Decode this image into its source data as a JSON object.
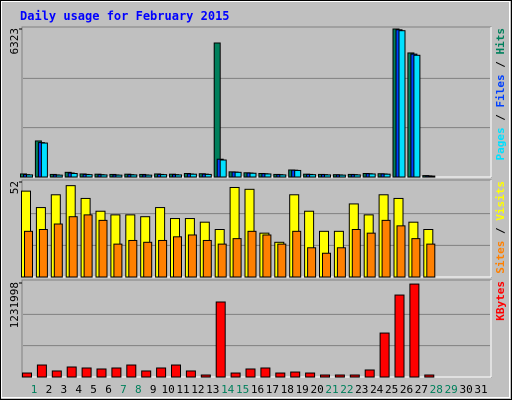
{
  "chart_data": [
    {
      "type": "bar",
      "title": "Daily usage for February 2015",
      "ylim": [
        0,
        6323
      ],
      "yticks": [
        6323
      ],
      "series": [
        {
          "name": "Hits",
          "color": "#00805c",
          "values": [
            130,
            1540,
            110,
            200,
            130,
            120,
            110,
            120,
            110,
            130,
            120,
            150,
            140,
            5725,
            220,
            180,
            150,
            110,
            300,
            120,
            110,
            100,
            110,
            150,
            140,
            6323,
            5300,
            60,
            null,
            null,
            null
          ]
        },
        {
          "name": "Files",
          "color": "#0040ff",
          "values": [
            100,
            1470,
            90,
            170,
            110,
            100,
            90,
            100,
            90,
            110,
            100,
            130,
            120,
            760,
            210,
            170,
            140,
            100,
            290,
            110,
            100,
            90,
            100,
            140,
            130,
            6290,
            5250,
            50,
            null,
            null,
            null
          ]
        },
        {
          "name": "Pages",
          "color": "#00e0ff",
          "values": [
            90,
            1450,
            80,
            150,
            100,
            90,
            80,
            90,
            80,
            100,
            90,
            120,
            110,
            726,
            200,
            160,
            130,
            90,
            280,
            100,
            90,
            80,
            90,
            130,
            120,
            6250,
            5200,
            40,
            null,
            null,
            null
          ]
        }
      ]
    },
    {
      "type": "bar",
      "ylim": [
        0,
        52
      ],
      "yticks": [
        52
      ],
      "series": [
        {
          "name": "Visits",
          "color": "#ffff00",
          "values": [
            47,
            38,
            45,
            50,
            43,
            36,
            34,
            34,
            33,
            38,
            32,
            32,
            30,
            26,
            49,
            48,
            24,
            19,
            45,
            36,
            25,
            25,
            40,
            34,
            45,
            43,
            30,
            26,
            null,
            null,
            null
          ]
        },
        {
          "name": "Sites",
          "color": "#ff8000",
          "values": [
            25,
            26,
            29,
            33,
            34,
            31,
            18,
            20,
            19,
            20,
            22,
            23,
            20,
            18,
            21,
            25,
            23,
            18,
            25,
            16,
            13,
            16,
            26,
            24,
            31,
            28,
            21,
            18,
            null,
            null,
            null
          ]
        }
      ]
    },
    {
      "type": "bar",
      "ylim": [
        0,
        1231998
      ],
      "yticks": [
        1231998
      ],
      "categories": [
        "1",
        "2",
        "3",
        "4",
        "5",
        "6",
        "7",
        "8",
        "9",
        "10",
        "11",
        "12",
        "13",
        "14",
        "15",
        "16",
        "17",
        "18",
        "19",
        "20",
        "21",
        "22",
        "23",
        "24",
        "25",
        "26",
        "27",
        "28",
        "29",
        "30",
        "31"
      ],
      "highlight_categories": [
        1,
        7,
        8,
        14,
        15,
        21,
        22,
        28,
        29
      ],
      "highlight_color": "#00805c",
      "series": [
        {
          "name": "KBytes",
          "color": "#ff0000",
          "values": [
            52000,
            157000,
            79000,
            131000,
            118000,
            105000,
            118000,
            157000,
            79000,
            118000,
            157000,
            79000,
            26000,
            983000,
            52000,
            105000,
            118000,
            52000,
            65000,
            52000,
            26000,
            26000,
            26000,
            92000,
            576000,
            1074000,
            1218000,
            26000,
            null,
            null,
            null
          ]
        }
      ]
    }
  ]
}
